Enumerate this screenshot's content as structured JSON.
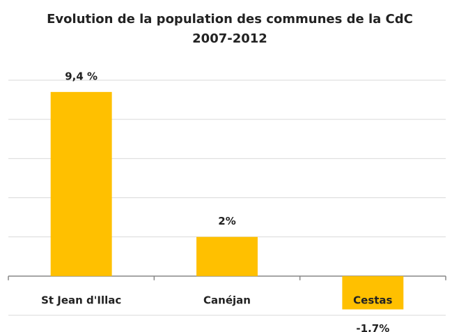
{
  "chart_data": {
    "type": "bar",
    "title": "Evolution de la population des communes de la CdC 2007-2012",
    "categories": [
      "St Jean d'Illac",
      "Canéjan",
      "Cestas"
    ],
    "values": [
      9.4,
      2,
      -1.7
    ],
    "value_labels": [
      "9,4 %",
      "2%",
      "-1,7%"
    ],
    "color": "#ffc000",
    "ylim": [
      -2,
      10
    ],
    "yticks": [
      -2,
      0,
      2,
      4,
      6,
      8,
      10
    ],
    "grid": true
  }
}
